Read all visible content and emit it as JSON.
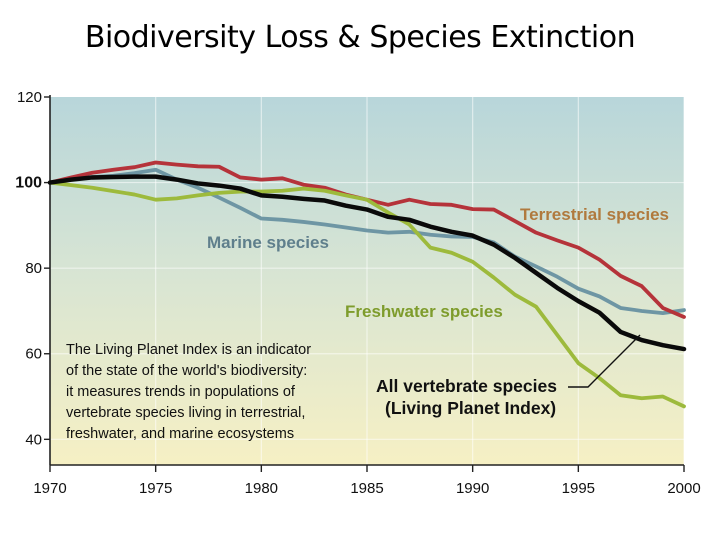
{
  "page": {
    "title": "Biodiversity Loss & Species Extinction"
  },
  "chart_data": {
    "type": "line",
    "title": "Biodiversity Loss & Species Extinction",
    "xlabel": "",
    "ylabel": "",
    "xlim": [
      1970,
      2000
    ],
    "ylim": [
      34,
      120
    ],
    "grid": true,
    "x_ticks": [
      1970,
      1975,
      1980,
      1985,
      1990,
      1995,
      2000
    ],
    "x_tick_labels": [
      "1970",
      "1975",
      "1980",
      "1985",
      "1990",
      "1995",
      "2000"
    ],
    "y_ticks": [
      40,
      60,
      80,
      100,
      120
    ],
    "y_tick_labels": [
      "40",
      "60",
      "80",
      "100",
      "120"
    ],
    "baseline_label": "100",
    "x": [
      1970,
      1971,
      1972,
      1973,
      1974,
      1975,
      1976,
      1977,
      1978,
      1979,
      1980,
      1981,
      1982,
      1983,
      1984,
      1985,
      1986,
      1987,
      1988,
      1989,
      1990,
      1991,
      1992,
      1993,
      1994,
      1995,
      1996,
      1997,
      1998,
      1999,
      2000
    ],
    "series": [
      {
        "name": "Terrestrial species",
        "color": "#b5333a",
        "label_color": "#b07a3e",
        "values": [
          100,
          101.2,
          102.3,
          103,
          103.6,
          104.7,
          104.2,
          103.8,
          103.7,
          101.2,
          100.7,
          101,
          99.5,
          98.8,
          97.2,
          96,
          94.8,
          96,
          95,
          94.8,
          93.8,
          93.7,
          91,
          88.3,
          86.5,
          84.8,
          82,
          78.2,
          75.8,
          70.7,
          68.6
        ]
      },
      {
        "name": "Marine species",
        "color": "#6e96a4",
        "label_color": "#5f7f8c",
        "values": [
          100,
          100.8,
          101.3,
          101.6,
          102.2,
          103,
          100.7,
          98.8,
          96.5,
          94.1,
          91.6,
          91.3,
          90.8,
          90.2,
          89.5,
          88.8,
          88.3,
          88.5,
          87.8,
          87.4,
          87.3,
          86,
          82.7,
          80.4,
          78,
          75.2,
          73.4,
          70.7,
          70,
          69.5,
          70.2
        ]
      },
      {
        "name": "Freshwater species",
        "color": "#9dba3c",
        "label_color": "#7e9c2c",
        "values": [
          100,
          99.4,
          98.8,
          98,
          97.2,
          96,
          96.3,
          97,
          97.6,
          97.9,
          97.9,
          98.1,
          98.6,
          98.1,
          97,
          96,
          93,
          90.2,
          84.8,
          83.6,
          81.5,
          77.8,
          73.8,
          71,
          64.4,
          57.8,
          54.3,
          50.3,
          49.6,
          50,
          47.7
        ]
      },
      {
        "name": "All vertebrate species (Living Planet Index)",
        "color": "#0a0a0a",
        "label_color": "#111111",
        "values": [
          100,
          100.7,
          101.2,
          101.3,
          101.4,
          101.4,
          100.7,
          99.8,
          99.3,
          98.6,
          97,
          96.7,
          96.2,
          95.8,
          94.6,
          93.7,
          92,
          91.3,
          89.7,
          88.5,
          87.6,
          85.5,
          82.4,
          78.9,
          75.4,
          72.3,
          69.6,
          65.1,
          63.2,
          62,
          61.1
        ]
      }
    ],
    "annotations": {
      "terrestrial": "Terrestrial species",
      "marine": "Marine species",
      "freshwater": "Freshwater species",
      "all_line1": "All vertebrate species",
      "all_line2": "(Living Planet Index)",
      "note_lines": [
        "The Living Planet Index is an indicator",
        "of the state of the world's biodiversity:",
        "it measures trends in populations of",
        "vertebrate species living in terrestrial,",
        "freshwater, and marine ecosystems"
      ]
    },
    "background_gradient": [
      "#b8d6da",
      "#d6e4d4",
      "#f6f0c4"
    ]
  }
}
